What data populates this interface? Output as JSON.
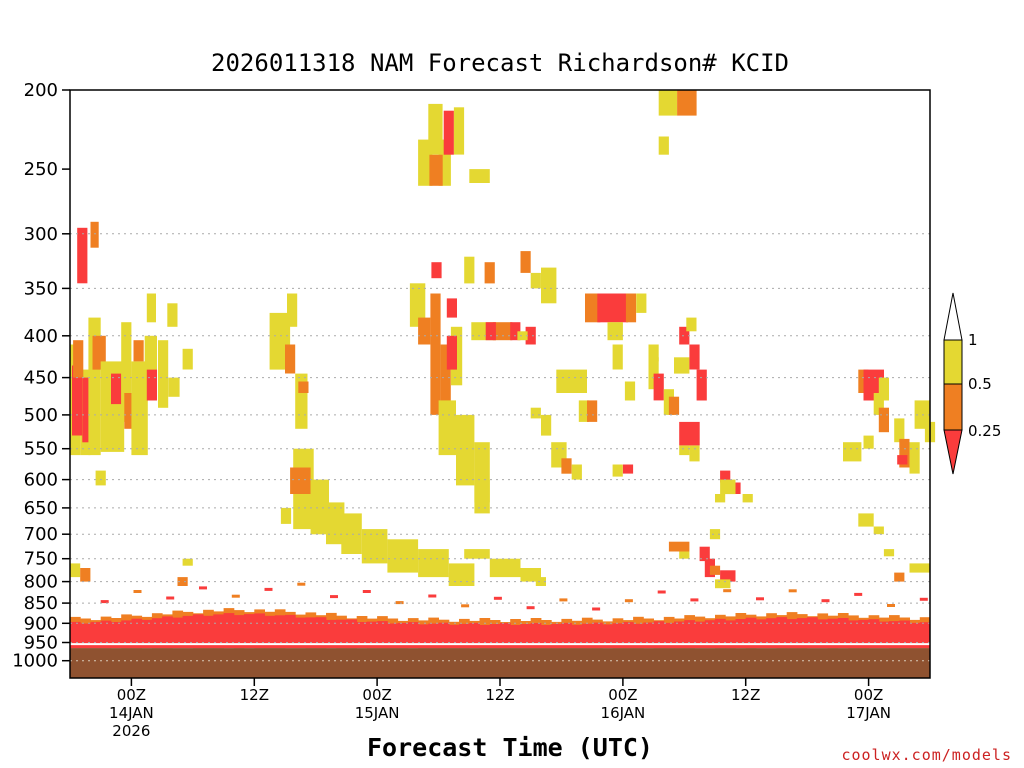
{
  "chart_data": {
    "type": "heatmap",
    "title": "2026011318 NAM Forecast Richardson# KCID",
    "xlabel": "Forecast Time (UTC)",
    "ylabel": "",
    "credit": "coolwx.com/models",
    "x_start_hours": 0,
    "x_end_hours": 84,
    "x_ticks": [
      {
        "hour": 6,
        "lines": [
          "00Z",
          "14JAN",
          "2026"
        ]
      },
      {
        "hour": 18,
        "lines": [
          "12Z"
        ]
      },
      {
        "hour": 30,
        "lines": [
          "00Z",
          "15JAN"
        ]
      },
      {
        "hour": 42,
        "lines": [
          "12Z"
        ]
      },
      {
        "hour": 54,
        "lines": [
          "00Z",
          "16JAN"
        ]
      },
      {
        "hour": 66,
        "lines": [
          "12Z"
        ]
      },
      {
        "hour": 78,
        "lines": [
          "00Z",
          "17JAN"
        ]
      }
    ],
    "y_axis": {
      "scale": "log",
      "inverted": true,
      "min": 200,
      "max": 1050
    },
    "y_ticks": [
      200,
      250,
      300,
      350,
      400,
      450,
      500,
      550,
      600,
      650,
      700,
      750,
      800,
      850,
      900,
      950,
      1000
    ],
    "y_gridlines": [
      300,
      350,
      400,
      450,
      500,
      550,
      600,
      650,
      700,
      750,
      800,
      850,
      900,
      950,
      1000
    ],
    "ground_pressure": 965,
    "colorbar": {
      "levels": [
        {
          "label": "1",
          "value": 1
        },
        {
          "label": "0.5",
          "value": 0.5
        },
        {
          "label": "0.25",
          "value": 0.25
        }
      ],
      "colors": {
        "above_1": "#ffffff",
        "0.5_to_1": "#e4d832",
        "0.25_to_0.5": "#ef7f22",
        "below_0.25": "#fa3c3c"
      },
      "ground_color": "#8f5230"
    },
    "cells": [
      [
        0,
        1,
        410,
        560,
        "c"
      ],
      [
        1,
        2,
        440,
        560,
        "c"
      ],
      [
        0.2,
        1.2,
        435,
        530,
        "r"
      ],
      [
        1.2,
        2.2,
        450,
        540,
        "r"
      ],
      [
        0.3,
        1.3,
        405,
        450,
        "b"
      ],
      [
        0.7,
        1.7,
        295,
        345,
        "r"
      ],
      [
        2,
        2.8,
        290,
        312,
        "b"
      ],
      [
        1.8,
        3,
        380,
        560,
        "c"
      ],
      [
        2.2,
        3.5,
        400,
        440,
        "b"
      ],
      [
        3,
        5.3,
        430,
        555,
        "c"
      ],
      [
        4,
        5,
        445,
        485,
        "r"
      ],
      [
        5,
        6,
        385,
        510,
        "c"
      ],
      [
        5.3,
        6.3,
        470,
        520,
        "b"
      ],
      [
        6,
        7.6,
        430,
        560,
        "c"
      ],
      [
        7.3,
        8.5,
        400,
        470,
        "c"
      ],
      [
        6.2,
        7.2,
        405,
        430,
        "b"
      ],
      [
        7.5,
        8.5,
        440,
        480,
        "r"
      ],
      [
        8.6,
        9.6,
        405,
        490,
        "c"
      ],
      [
        9.6,
        10.7,
        450,
        475,
        "c"
      ],
      [
        9.5,
        10.5,
        365,
        390,
        "c"
      ],
      [
        11,
        12,
        415,
        440,
        "c"
      ],
      [
        2.5,
        3.5,
        585,
        610,
        "c"
      ],
      [
        7.5,
        8.4,
        355,
        385,
        "c"
      ],
      [
        19.5,
        21.5,
        375,
        440,
        "c"
      ],
      [
        21,
        22,
        410,
        445,
        "b"
      ],
      [
        21.2,
        22.2,
        355,
        390,
        "c"
      ],
      [
        22,
        23.2,
        445,
        520,
        "c"
      ],
      [
        22.3,
        23.3,
        455,
        470,
        "b"
      ],
      [
        21.8,
        23.8,
        550,
        690,
        "c"
      ],
      [
        21.5,
        23.5,
        580,
        625,
        "b"
      ],
      [
        23.5,
        25.3,
        600,
        700,
        "c"
      ],
      [
        25,
        26.8,
        640,
        720,
        "c"
      ],
      [
        26.5,
        28.5,
        660,
        740,
        "c"
      ],
      [
        28.5,
        31,
        690,
        760,
        "c"
      ],
      [
        31,
        34,
        710,
        780,
        "c"
      ],
      [
        34,
        37,
        730,
        790,
        "c"
      ],
      [
        37,
        39.5,
        760,
        810,
        "c"
      ],
      [
        20.6,
        21.6,
        650,
        680,
        "c"
      ],
      [
        33.2,
        34.7,
        345,
        390,
        "c"
      ],
      [
        34,
        35.4,
        230,
        262,
        "c"
      ],
      [
        36,
        37.2,
        230,
        262,
        "c"
      ],
      [
        35.1,
        36.4,
        240,
        262,
        "b"
      ],
      [
        35,
        36.4,
        208,
        240,
        "c"
      ],
      [
        36.5,
        37.5,
        212,
        240,
        "r"
      ],
      [
        37.5,
        38.5,
        210,
        240,
        "c"
      ],
      [
        39,
        41,
        250,
        260,
        "c"
      ],
      [
        35.3,
        36.3,
        325,
        340,
        "r"
      ],
      [
        34,
        35.2,
        380,
        410,
        "b"
      ],
      [
        35.2,
        36.2,
        355,
        500,
        "b"
      ],
      [
        36.2,
        37.2,
        410,
        500,
        "b"
      ],
      [
        37.2,
        38.3,
        390,
        460,
        "c"
      ],
      [
        36.8,
        37.8,
        360,
        380,
        "r"
      ],
      [
        36.8,
        37.8,
        400,
        440,
        "r"
      ],
      [
        36,
        37.7,
        480,
        560,
        "c"
      ],
      [
        37.7,
        39.5,
        500,
        610,
        "c"
      ],
      [
        39.5,
        41,
        540,
        640,
        "c"
      ],
      [
        39.5,
        41,
        600,
        660,
        "c"
      ],
      [
        38.5,
        39.5,
        320,
        345,
        "c"
      ],
      [
        40.5,
        41.5,
        325,
        345,
        "b"
      ],
      [
        39.2,
        41.6,
        385,
        405,
        "c"
      ],
      [
        41.3,
        43.2,
        385,
        405,
        "b"
      ],
      [
        40.6,
        41.6,
        385,
        405,
        "r"
      ],
      [
        43,
        44,
        385,
        405,
        "r"
      ],
      [
        44,
        45,
        315,
        335,
        "b"
      ],
      [
        45,
        46,
        335,
        350,
        "c"
      ],
      [
        44.5,
        45.5,
        390,
        410,
        "r"
      ],
      [
        43.7,
        44.7,
        395,
        405,
        "c"
      ],
      [
        46,
        47.5,
        330,
        365,
        "c"
      ],
      [
        38.5,
        41,
        730,
        750,
        "c"
      ],
      [
        41,
        44,
        750,
        790,
        "c"
      ],
      [
        44,
        46,
        770,
        800,
        "c"
      ],
      [
        45.5,
        46.5,
        790,
        810,
        "c"
      ],
      [
        37,
        39,
        780,
        810,
        "c"
      ],
      [
        45,
        46,
        490,
        505,
        "c"
      ],
      [
        46,
        47,
        500,
        530,
        "c"
      ],
      [
        47,
        48.5,
        540,
        580,
        "c"
      ],
      [
        48,
        49,
        565,
        590,
        "b"
      ],
      [
        49,
        50,
        575,
        600,
        "c"
      ],
      [
        47.5,
        50.5,
        440,
        470,
        "c"
      ],
      [
        49.7,
        50.7,
        480,
        510,
        "c"
      ],
      [
        50.5,
        51.5,
        480,
        510,
        "b"
      ],
      [
        50.3,
        51.8,
        355,
        385,
        "b"
      ],
      [
        51.5,
        54.5,
        355,
        385,
        "r"
      ],
      [
        54.3,
        55.3,
        355,
        385,
        "b"
      ],
      [
        55.3,
        56.3,
        355,
        375,
        "c"
      ],
      [
        52.5,
        54,
        385,
        405,
        "c"
      ],
      [
        53,
        54,
        410,
        440,
        "c"
      ],
      [
        54.2,
        55.2,
        455,
        480,
        "c"
      ],
      [
        53,
        54,
        575,
        595,
        "c"
      ],
      [
        54,
        55,
        575,
        590,
        "r"
      ],
      [
        56.5,
        57.5,
        425,
        465,
        "c"
      ],
      [
        57,
        58,
        445,
        480,
        "r"
      ],
      [
        56.5,
        57.5,
        410,
        430,
        "c"
      ],
      [
        59,
        60.5,
        425,
        445,
        "c"
      ],
      [
        57.5,
        59.3,
        200,
        215,
        "c"
      ],
      [
        59.3,
        61.2,
        200,
        215,
        "b"
      ],
      [
        57.5,
        58.5,
        228,
        240,
        "c"
      ],
      [
        58,
        59,
        465,
        500,
        "c"
      ],
      [
        58.5,
        59.5,
        475,
        500,
        "b"
      ],
      [
        59.5,
        60.5,
        390,
        410,
        "r"
      ],
      [
        60.5,
        61.5,
        410,
        440,
        "r"
      ],
      [
        60.2,
        61.2,
        380,
        395,
        "c"
      ],
      [
        61.2,
        62.2,
        440,
        480,
        "r"
      ],
      [
        59.5,
        61.5,
        510,
        545,
        "r"
      ],
      [
        60.5,
        61.5,
        545,
        570,
        "c"
      ],
      [
        59.5,
        60.5,
        545,
        560,
        "c"
      ],
      [
        63.5,
        64.5,
        585,
        605,
        "r"
      ],
      [
        64.5,
        65.5,
        605,
        625,
        "r"
      ],
      [
        63,
        64,
        625,
        640,
        "c"
      ],
      [
        63.5,
        65,
        600,
        625,
        "c"
      ],
      [
        65.7,
        66.7,
        625,
        640,
        "c"
      ],
      [
        62.5,
        63.5,
        690,
        710,
        "c"
      ],
      [
        58.5,
        60.5,
        715,
        735,
        "b"
      ],
      [
        59.5,
        60.5,
        735,
        750,
        "c"
      ],
      [
        61.5,
        62.5,
        725,
        755,
        "r"
      ],
      [
        62,
        63,
        750,
        790,
        "r"
      ],
      [
        62.5,
        63.5,
        765,
        785,
        "b"
      ],
      [
        63.5,
        65,
        775,
        800,
        "r"
      ],
      [
        63,
        64.5,
        795,
        815,
        "c"
      ],
      [
        77,
        78,
        440,
        470,
        "b"
      ],
      [
        77.5,
        79.5,
        440,
        480,
        "r"
      ],
      [
        79,
        80,
        450,
        480,
        "c"
      ],
      [
        78.5,
        79.5,
        470,
        500,
        "c"
      ],
      [
        79,
        80,
        490,
        525,
        "b"
      ],
      [
        80.5,
        81.5,
        505,
        540,
        "c"
      ],
      [
        81,
        82,
        535,
        580,
        "b"
      ],
      [
        82,
        83,
        540,
        590,
        "c"
      ],
      [
        80.8,
        81.8,
        560,
        575,
        "r"
      ],
      [
        77.5,
        78.5,
        530,
        550,
        "c"
      ],
      [
        75.5,
        77.3,
        540,
        570,
        "c"
      ],
      [
        82.5,
        84,
        480,
        520,
        "c"
      ],
      [
        83.5,
        84.5,
        510,
        540,
        "c"
      ],
      [
        77,
        78.5,
        660,
        685,
        "c"
      ],
      [
        78.5,
        79.5,
        685,
        700,
        "c"
      ],
      [
        79.5,
        80.5,
        730,
        745,
        "c"
      ],
      [
        82,
        84,
        760,
        780,
        "c"
      ],
      [
        80.5,
        81.5,
        780,
        800,
        "b"
      ],
      [
        0,
        1,
        760,
        790,
        "c"
      ],
      [
        1,
        2,
        770,
        800,
        "b"
      ],
      [
        11,
        12,
        750,
        765,
        "c"
      ],
      [
        10.5,
        11.5,
        790,
        810,
        "b"
      ]
    ]
  }
}
